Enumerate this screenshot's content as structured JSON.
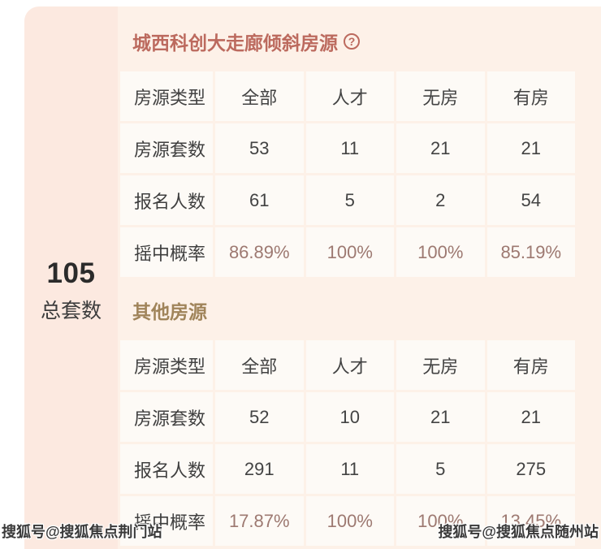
{
  "summary": {
    "total_units": "105",
    "total_units_label": "总套数"
  },
  "help_icon_glyph": "?",
  "sections": [
    {
      "title": "城西科创大走廊倾斜房源",
      "has_help_icon": true,
      "table": {
        "header": [
          "房源类型",
          "全部",
          "人才",
          "无房",
          "有房"
        ],
        "rows": [
          {
            "label": "房源套数",
            "values": [
              "53",
              "11",
              "21",
              "21"
            ],
            "highlight": false
          },
          {
            "label": "报名人数",
            "values": [
              "61",
              "5",
              "2",
              "54"
            ],
            "highlight": false
          },
          {
            "label": "摇中概率",
            "values": [
              "86.89%",
              "100%",
              "100%",
              "85.19%"
            ],
            "highlight": true
          }
        ]
      }
    },
    {
      "title": "其他房源",
      "has_help_icon": false,
      "table": {
        "header": [
          "房源类型",
          "全部",
          "人才",
          "无房",
          "有房"
        ],
        "rows": [
          {
            "label": "房源套数",
            "values": [
              "52",
              "10",
              "21",
              "21"
            ],
            "highlight": false
          },
          {
            "label": "报名人数",
            "values": [
              "291",
              "11",
              "5",
              "275"
            ],
            "highlight": false
          },
          {
            "label": "摇中概率",
            "values": [
              "17.87%",
              "100%",
              "100%",
              "13.45%"
            ],
            "highlight": true
          }
        ]
      }
    }
  ],
  "watermarks": {
    "bottom_left": "搜狐号@搜狐焦点荆门站",
    "bottom_right": "搜狐号@搜狐焦点随州站"
  },
  "colors": {
    "card_background": "#fdf1e8",
    "left_panel_background": "#fce9e0",
    "cell_background": "#fdfaf6",
    "section1_title": "#bc6a5e",
    "section2_title": "#a0845a",
    "percentage_text": "#9d7971",
    "dark_text": "#3d3d3d"
  }
}
